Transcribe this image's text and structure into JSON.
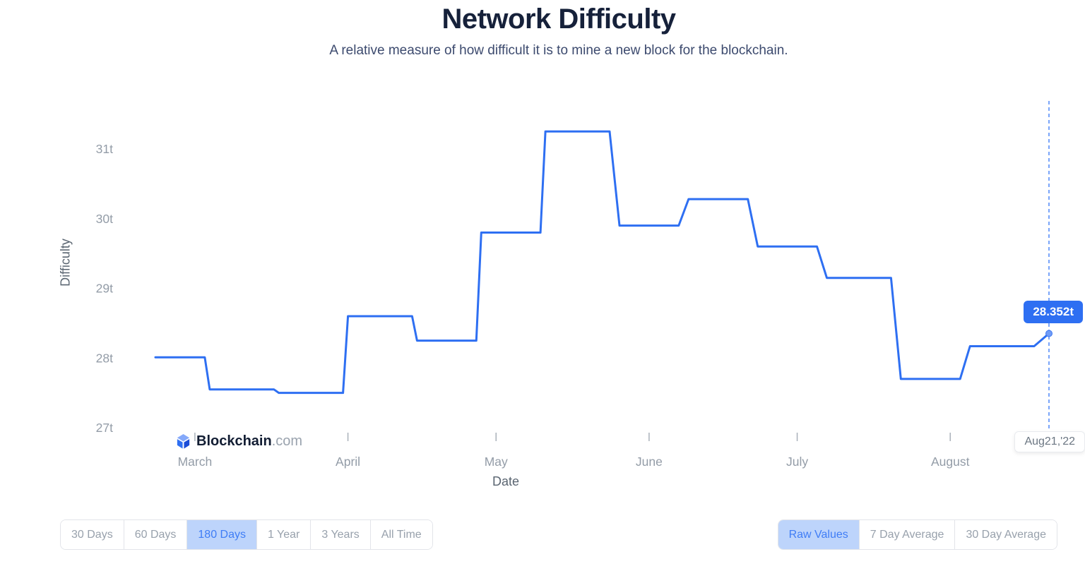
{
  "header": {
    "title": "Network Difficulty",
    "subtitle": "A relative measure of how difficult it is to mine a new block for the blockchain."
  },
  "logo": {
    "brand": "Blockchain",
    "suffix": ".com"
  },
  "tooltip": {
    "value_label": "28.352t",
    "date_label": "Aug21,'22"
  },
  "chart_data": {
    "type": "line",
    "title": "Network Difficulty",
    "subtitle": "A relative measure of how difficult it is to mine a new block for the blockchain.",
    "xlabel": "Date",
    "ylabel": "Difficulty",
    "y_unit": "t",
    "x_range": [
      "2022-02-21",
      "2022-08-21"
    ],
    "ylim": [
      27,
      31.5
    ],
    "grid": false,
    "legend": false,
    "yticks": [
      {
        "value": 27,
        "label": "27t"
      },
      {
        "value": 28,
        "label": "28t"
      },
      {
        "value": 29,
        "label": "29t"
      },
      {
        "value": 30,
        "label": "30t"
      },
      {
        "value": 31,
        "label": "31t"
      }
    ],
    "xticks": [
      {
        "date": "2022-03-01",
        "label": "March"
      },
      {
        "date": "2022-04-01",
        "label": "April"
      },
      {
        "date": "2022-05-01",
        "label": "May"
      },
      {
        "date": "2022-06-01",
        "label": "June"
      },
      {
        "date": "2022-07-01",
        "label": "July"
      },
      {
        "date": "2022-08-01",
        "label": "August"
      }
    ],
    "series": [
      {
        "name": "Network Difficulty",
        "color": "#2e6ff2",
        "points": [
          [
            "2022-02-21",
            28.01
          ],
          [
            "2022-03-03",
            28.01
          ],
          [
            "2022-03-04",
            27.55
          ],
          [
            "2022-03-17",
            27.55
          ],
          [
            "2022-03-18",
            27.5
          ],
          [
            "2022-03-31",
            27.5
          ],
          [
            "2022-04-01",
            28.6
          ],
          [
            "2022-04-14",
            28.6
          ],
          [
            "2022-04-15",
            28.25
          ],
          [
            "2022-04-27",
            28.25
          ],
          [
            "2022-04-28",
            29.8
          ],
          [
            "2022-05-10",
            29.8
          ],
          [
            "2022-05-11",
            31.25
          ],
          [
            "2022-05-24",
            31.25
          ],
          [
            "2022-05-26",
            29.9
          ],
          [
            "2022-06-07",
            29.9
          ],
          [
            "2022-06-09",
            30.28
          ],
          [
            "2022-06-21",
            30.28
          ],
          [
            "2022-06-23",
            29.6
          ],
          [
            "2022-07-05",
            29.6
          ],
          [
            "2022-07-07",
            29.15
          ],
          [
            "2022-07-20",
            29.15
          ],
          [
            "2022-07-22",
            27.7
          ],
          [
            "2022-08-03",
            27.7
          ],
          [
            "2022-08-05",
            28.17
          ],
          [
            "2022-08-18",
            28.17
          ],
          [
            "2022-08-21",
            28.352
          ]
        ]
      }
    ],
    "last_point": {
      "date": "2022-08-21",
      "value": 28.352,
      "value_label": "28.352t",
      "date_label": "Aug21,'22"
    }
  },
  "controls": {
    "range_buttons": [
      {
        "label": "30 Days",
        "selected": false
      },
      {
        "label": "60 Days",
        "selected": false
      },
      {
        "label": "180 Days",
        "selected": true
      },
      {
        "label": "1 Year",
        "selected": false
      },
      {
        "label": "3 Years",
        "selected": false
      },
      {
        "label": "All Time",
        "selected": false
      }
    ],
    "mode_buttons": [
      {
        "label": "Raw Values",
        "selected": true
      },
      {
        "label": "7 Day Average",
        "selected": false
      },
      {
        "label": "30 Day Average",
        "selected": false
      }
    ]
  },
  "colors": {
    "accent": "#2e6ff2",
    "accent-light": "#bdd4fb",
    "accent-text": "#3f7df6",
    "title": "#16213a",
    "subtitle": "#3c4a6e",
    "axis-label": "#5a6571",
    "tick-text": "#939ca7",
    "tooltip-bg": "#2e6ff2",
    "cursor-line": "#4f87f8"
  }
}
